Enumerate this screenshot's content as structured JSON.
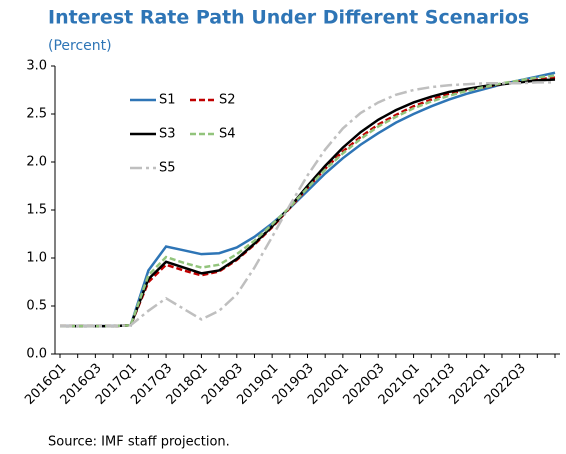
{
  "chart_data": {
    "type": "line",
    "title": "Interest Rate Path Under Different Scenarios",
    "subtitle": "(Percent)",
    "source": "Source: IMF staff projection.",
    "categories": [
      "2016Q1",
      null,
      "2016Q3",
      null,
      "2017Q1",
      null,
      "2017Q3",
      null,
      "2018Q1",
      null,
      "2018Q3",
      null,
      "2019Q1",
      null,
      "2019Q3",
      null,
      "2020Q1",
      null,
      "2020Q3",
      null,
      "2021Q1",
      null,
      "2021Q3",
      null,
      "2022Q1",
      null,
      "2022Q3",
      null,
      null
    ],
    "series": [
      {
        "name": "S1",
        "color": "#2e75b6",
        "dash": "solid",
        "values": [
          0.29,
          0.29,
          0.29,
          0.29,
          0.3,
          0.87,
          1.12,
          1.08,
          1.04,
          1.05,
          1.11,
          1.22,
          1.36,
          1.52,
          1.7,
          1.88,
          2.04,
          2.18,
          2.3,
          2.41,
          2.5,
          2.58,
          2.65,
          2.71,
          2.76,
          2.81,
          2.85,
          2.89,
          2.93
        ]
      },
      {
        "name": "S2",
        "color": "#c00000",
        "dash": "dashed",
        "values": [
          0.29,
          0.29,
          0.29,
          0.29,
          0.3,
          0.75,
          0.93,
          0.87,
          0.82,
          0.86,
          0.98,
          1.14,
          1.32,
          1.52,
          1.73,
          1.93,
          2.11,
          2.26,
          2.39,
          2.49,
          2.58,
          2.65,
          2.71,
          2.75,
          2.78,
          2.81,
          2.84,
          2.86,
          2.88
        ]
      },
      {
        "name": "S3",
        "color": "#000000",
        "dash": "solid",
        "values": [
          0.29,
          0.29,
          0.29,
          0.29,
          0.3,
          0.78,
          0.96,
          0.9,
          0.84,
          0.87,
          0.99,
          1.15,
          1.33,
          1.53,
          1.75,
          1.96,
          2.15,
          2.31,
          2.44,
          2.54,
          2.62,
          2.68,
          2.73,
          2.76,
          2.79,
          2.81,
          2.83,
          2.85,
          2.86
        ]
      },
      {
        "name": "S4",
        "color": "#92c47c",
        "dash": "dashed",
        "values": [
          0.29,
          0.29,
          0.29,
          0.29,
          0.3,
          0.82,
          1.01,
          0.95,
          0.9,
          0.93,
          1.04,
          1.18,
          1.35,
          1.53,
          1.73,
          1.92,
          2.09,
          2.24,
          2.37,
          2.47,
          2.56,
          2.63,
          2.69,
          2.74,
          2.78,
          2.82,
          2.85,
          2.88,
          2.9
        ]
      },
      {
        "name": "S5",
        "color": "#bfbfbf",
        "dash": "dashdot",
        "values": [
          0.29,
          0.29,
          0.29,
          0.29,
          0.3,
          0.45,
          0.58,
          0.47,
          0.36,
          0.45,
          0.62,
          0.9,
          1.22,
          1.55,
          1.86,
          2.13,
          2.35,
          2.51,
          2.62,
          2.7,
          2.75,
          2.78,
          2.8,
          2.81,
          2.82,
          2.82,
          2.82,
          2.83,
          2.83
        ]
      }
    ],
    "ylim": [
      0,
      3
    ],
    "yticks": [
      {
        "value": 0,
        "label": "0.0"
      },
      0.5,
      {
        "value": 1,
        "label": "1.0"
      },
      1.5,
      {
        "value": 2,
        "label": "2.0"
      },
      2.5,
      {
        "value": 3,
        "label": "3.0"
      }
    ],
    "grid": false
  }
}
